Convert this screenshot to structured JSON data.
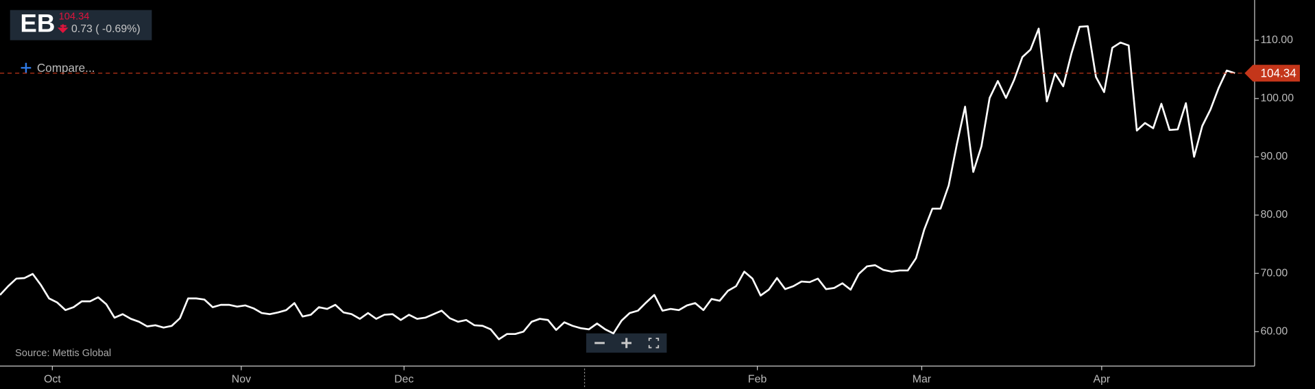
{
  "header": {
    "symbol": "EB",
    "price": "104.34",
    "change": "0.73 ( -0.69%)"
  },
  "compare": "Compare...",
  "chart_data": {
    "type": "line",
    "source": "Source: Mettis Global",
    "color": "#ffffff",
    "values": [
      66.3,
      67.8,
      69.1,
      69.2,
      69.9,
      68.0,
      65.7,
      65.0,
      63.7,
      64.2,
      65.2,
      65.2,
      65.9,
      64.7,
      62.4,
      63.0,
      62.2,
      61.7,
      60.9,
      61.1,
      60.7,
      61.0,
      62.3,
      65.7,
      65.7,
      65.5,
      64.2,
      64.6,
      64.6,
      64.3,
      64.5,
      64.0,
      63.2,
      63.0,
      63.3,
      63.7,
      64.9,
      62.6,
      62.9,
      64.2,
      63.9,
      64.6,
      63.3,
      63.0,
      62.2,
      63.2,
      62.2,
      62.9,
      63.0,
      62.0,
      62.9,
      62.2,
      62.4,
      63.0,
      63.6,
      62.3,
      61.7,
      62.0,
      61.1,
      61.0,
      60.4,
      58.7,
      59.6,
      59.6,
      60.0,
      61.7,
      62.2,
      62.0,
      60.3,
      61.6,
      61.0,
      60.6,
      60.4,
      61.4,
      60.4,
      59.7,
      61.9,
      63.2,
      63.6,
      65.0,
      66.3,
      63.6,
      63.9,
      63.7,
      64.5,
      64.9,
      63.7,
      65.6,
      65.3,
      67.0,
      67.8,
      70.3,
      69.1,
      66.2,
      67.2,
      69.2,
      67.3,
      67.8,
      68.6,
      68.5,
      69.1,
      67.3,
      67.5,
      68.3,
      67.2,
      69.9,
      71.2,
      71.4,
      70.6,
      70.3,
      70.5,
      70.5,
      72.6,
      77.5,
      81.1,
      81.1,
      85.1,
      92.2,
      98.6,
      87.4,
      91.8,
      100.1,
      103.0,
      100.1,
      103.2,
      107.1,
      108.4,
      112.0,
      99.5,
      104.3,
      102.1,
      107.7,
      112.3,
      112.4,
      103.7,
      101.1,
      108.7,
      109.6,
      109.1,
      94.5,
      95.8,
      94.9,
      99.1,
      94.6,
      94.7,
      99.2,
      90.0,
      95.3,
      98.1,
      101.8,
      104.8,
      104.34
    ],
    "xlim": [
      0,
      153.4
    ],
    "xticks": [
      {
        "value": 6.4,
        "label": "Oct"
      },
      {
        "value": 29.5,
        "label": "Nov"
      },
      {
        "value": 49.4,
        "label": "Dec"
      },
      {
        "value": 92.6,
        "label": "Feb"
      },
      {
        "value": 112.7,
        "label": "Mar"
      },
      {
        "value": 134.7,
        "label": "Apr"
      }
    ],
    "ylim": [
      54.1,
      116.9
    ],
    "yticks": [
      {
        "value": 60,
        "label": "60.00"
      },
      {
        "value": 70,
        "label": "70.00"
      },
      {
        "value": 80,
        "label": "80.00"
      },
      {
        "value": 90,
        "label": "90.00"
      },
      {
        "value": 100,
        "label": "100.00"
      },
      {
        "value": 110,
        "label": "110.00"
      }
    ],
    "price_line": {
      "value": 104.34,
      "label": "104.34",
      "color": "#c4361a"
    }
  }
}
